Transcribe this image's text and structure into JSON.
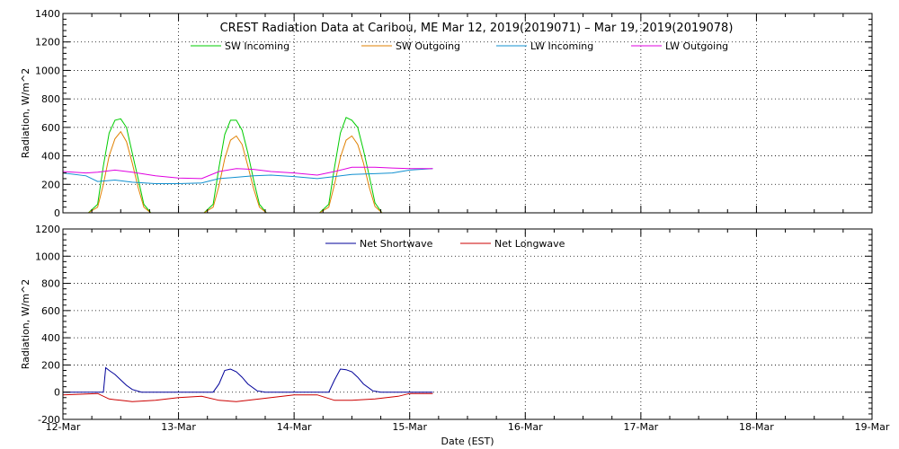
{
  "chart_data": [
    {
      "type": "line",
      "title": "CREST Radiation Data at Caribou, ME   Mar 12, 2019(2019071) – Mar 19, 2019(2019078)",
      "xlabel": "",
      "ylabel": "Radiation, W/m^2",
      "xlim": [
        "12-Mar",
        "19-Mar"
      ],
      "ylim": [
        0,
        1400
      ],
      "y_ticks": [
        0,
        200,
        400,
        600,
        800,
        1000,
        1200,
        1400
      ],
      "x_tick_labels": [
        "12-Mar",
        "13-Mar",
        "14-Mar",
        "15-Mar",
        "16-Mar",
        "17-Mar",
        "18-Mar",
        "19-Mar"
      ],
      "grid": "dotted",
      "legend_position": "top",
      "series": [
        {
          "name": "SW Incoming",
          "color": "#00cc00",
          "x_day": [
            0.22,
            0.3,
            0.35,
            0.4,
            0.45,
            0.5,
            0.55,
            0.6,
            0.65,
            0.7,
            0.76,
            0.82,
            1.22,
            1.3,
            1.35,
            1.4,
            1.45,
            1.5,
            1.55,
            1.6,
            1.65,
            1.7,
            1.76,
            1.82,
            2.22,
            2.3,
            2.35,
            2.4,
            2.45,
            2.5,
            2.55,
            2.6,
            2.65,
            2.7,
            2.76,
            2.82
          ],
          "values": [
            0,
            60,
            330,
            560,
            650,
            660,
            600,
            420,
            240,
            60,
            0,
            0,
            0,
            60,
            320,
            550,
            650,
            650,
            580,
            420,
            230,
            60,
            0,
            0,
            0,
            60,
            320,
            560,
            670,
            650,
            600,
            440,
            260,
            70,
            0,
            0
          ]
        },
        {
          "name": "SW Outgoing",
          "color": "#e08000",
          "x_day": [
            0.22,
            0.3,
            0.35,
            0.4,
            0.45,
            0.5,
            0.55,
            0.6,
            0.65,
            0.7,
            0.76,
            0.82,
            1.22,
            1.3,
            1.35,
            1.4,
            1.45,
            1.5,
            1.55,
            1.6,
            1.65,
            1.7,
            1.76,
            1.82,
            2.22,
            2.3,
            2.35,
            2.4,
            2.45,
            2.5,
            2.55,
            2.6,
            2.65,
            2.7,
            2.76,
            2.82
          ],
          "values": [
            0,
            40,
            200,
            400,
            520,
            570,
            500,
            350,
            180,
            40,
            0,
            0,
            0,
            40,
            190,
            380,
            510,
            540,
            480,
            330,
            170,
            40,
            0,
            0,
            0,
            40,
            200,
            390,
            510,
            540,
            480,
            350,
            180,
            45,
            0,
            0
          ]
        },
        {
          "name": "LW Incoming",
          "color": "#1090d0",
          "x_day": [
            0.0,
            0.2,
            0.3,
            0.45,
            0.6,
            0.8,
            1.0,
            1.2,
            1.35,
            1.5,
            1.65,
            1.8,
            2.0,
            2.2,
            2.35,
            2.5,
            2.7,
            2.85,
            3.0,
            3.2
          ],
          "values": [
            280,
            260,
            220,
            230,
            215,
            205,
            205,
            210,
            240,
            250,
            260,
            265,
            255,
            240,
            255,
            270,
            275,
            280,
            300,
            310
          ]
        },
        {
          "name": "LW Outgoing",
          "color": "#e000e0",
          "x_day": [
            0.0,
            0.2,
            0.3,
            0.45,
            0.6,
            0.8,
            1.0,
            1.2,
            1.35,
            1.5,
            1.65,
            1.8,
            2.0,
            2.2,
            2.35,
            2.5,
            2.7,
            2.85,
            3.0,
            3.2
          ],
          "values": [
            290,
            280,
            285,
            300,
            285,
            260,
            245,
            240,
            290,
            310,
            305,
            290,
            280,
            265,
            290,
            320,
            320,
            315,
            310,
            310
          ]
        }
      ]
    },
    {
      "type": "line",
      "title": "",
      "xlabel": "Date (EST)",
      "ylabel": "Radiation, W/m^2",
      "xlim": [
        "12-Mar",
        "19-Mar"
      ],
      "ylim": [
        -200,
        1200
      ],
      "y_ticks": [
        -200,
        0,
        200,
        400,
        600,
        800,
        1000,
        1200
      ],
      "x_tick_labels": [
        "12-Mar",
        "13-Mar",
        "14-Mar",
        "15-Mar",
        "16-Mar",
        "17-Mar",
        "18-Mar",
        "19-Mar"
      ],
      "grid": "dotted",
      "legend_position": "top",
      "series": [
        {
          "name": "Net Shortwave",
          "color": "#000099",
          "x_day": [
            0.0,
            0.35,
            0.37,
            0.4,
            0.45,
            0.5,
            0.55,
            0.6,
            0.68,
            0.75,
            1.0,
            1.3,
            1.35,
            1.4,
            1.45,
            1.5,
            1.55,
            1.6,
            1.68,
            1.75,
            2.0,
            2.3,
            2.35,
            2.4,
            2.45,
            2.5,
            2.55,
            2.6,
            2.68,
            2.75,
            3.0,
            3.2
          ],
          "values": [
            0,
            0,
            180,
            160,
            130,
            90,
            50,
            20,
            0,
            0,
            0,
            0,
            60,
            160,
            170,
            150,
            110,
            60,
            10,
            0,
            0,
            0,
            90,
            170,
            165,
            150,
            110,
            60,
            10,
            0,
            0,
            0
          ]
        },
        {
          "name": "Net Longwave",
          "color": "#cc0000",
          "x_day": [
            0.0,
            0.3,
            0.4,
            0.5,
            0.6,
            0.8,
            1.0,
            1.2,
            1.35,
            1.5,
            1.6,
            1.8,
            2.0,
            2.2,
            2.35,
            2.5,
            2.7,
            2.9,
            3.0,
            3.2
          ],
          "values": [
            -20,
            -10,
            -50,
            -60,
            -70,
            -60,
            -40,
            -30,
            -60,
            -70,
            -60,
            -40,
            -20,
            -20,
            -60,
            -60,
            -50,
            -30,
            -10,
            -10
          ]
        }
      ]
    }
  ]
}
